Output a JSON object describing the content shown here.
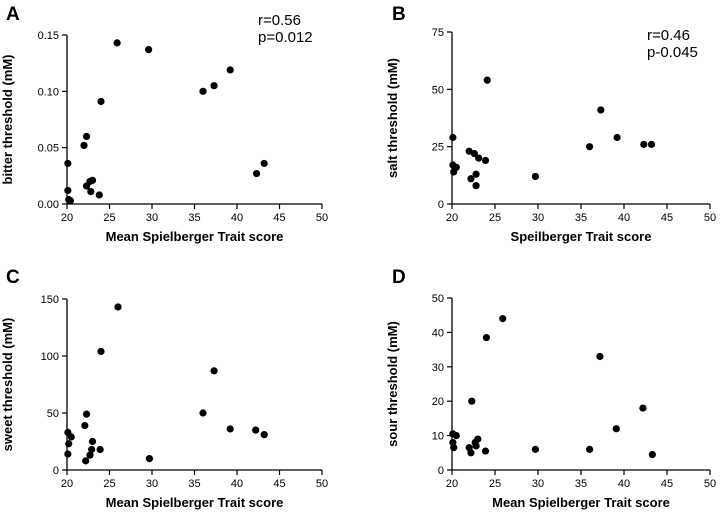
{
  "chart_data": [
    {
      "type": "scatter",
      "panel": "A",
      "xlabel": "Mean Spielberger Trait score",
      "ylabel": "bitter threshold (mM)",
      "xlim": [
        20,
        50
      ],
      "ylim": [
        0,
        0.15
      ],
      "xticks": [
        "20",
        "25",
        "30",
        "35",
        "40",
        "45",
        "50"
      ],
      "yticks": [
        "0.00",
        "0.05",
        "0.10",
        "0.15"
      ],
      "stats": [
        "r=0.56",
        "p=0.012"
      ],
      "points": [
        {
          "x": 20.1,
          "y": 0.036
        },
        {
          "x": 20.1,
          "y": 0.012
        },
        {
          "x": 20.2,
          "y": 0.004
        },
        {
          "x": 20.4,
          "y": 0.003
        },
        {
          "x": 22.0,
          "y": 0.052
        },
        {
          "x": 22.3,
          "y": 0.06
        },
        {
          "x": 22.3,
          "y": 0.016
        },
        {
          "x": 22.7,
          "y": 0.02
        },
        {
          "x": 23.0,
          "y": 0.021
        },
        {
          "x": 22.8,
          "y": 0.011
        },
        {
          "x": 23.8,
          "y": 0.008
        },
        {
          "x": 24.0,
          "y": 0.091
        },
        {
          "x": 25.9,
          "y": 0.143
        },
        {
          "x": 29.6,
          "y": 0.137
        },
        {
          "x": 36.0,
          "y": 0.1
        },
        {
          "x": 37.3,
          "y": 0.105
        },
        {
          "x": 39.2,
          "y": 0.119
        },
        {
          "x": 42.3,
          "y": 0.027
        },
        {
          "x": 43.2,
          "y": 0.036
        }
      ]
    },
    {
      "type": "scatter",
      "panel": "B",
      "xlabel": "Speilberger Trait score",
      "ylabel": "salt threshold (mM)",
      "xlim": [
        20,
        50
      ],
      "ylim": [
        0,
        75
      ],
      "xticks": [
        "20",
        "25",
        "30",
        "35",
        "40",
        "45",
        "50"
      ],
      "yticks": [
        "0",
        "25",
        "50",
        "75"
      ],
      "stats": [
        "r=0.46",
        "p-0.045"
      ],
      "points": [
        {
          "x": 20.1,
          "y": 29
        },
        {
          "x": 20.1,
          "y": 17
        },
        {
          "x": 20.2,
          "y": 14
        },
        {
          "x": 20.5,
          "y": 16
        },
        {
          "x": 22.0,
          "y": 23
        },
        {
          "x": 22.2,
          "y": 11
        },
        {
          "x": 22.6,
          "y": 22
        },
        {
          "x": 22.8,
          "y": 13
        },
        {
          "x": 23.1,
          "y": 20
        },
        {
          "x": 22.8,
          "y": 8
        },
        {
          "x": 23.9,
          "y": 19
        },
        {
          "x": 24.1,
          "y": 54
        },
        {
          "x": 29.7,
          "y": 12
        },
        {
          "x": 36.0,
          "y": 25
        },
        {
          "x": 37.3,
          "y": 41
        },
        {
          "x": 39.2,
          "y": 29
        },
        {
          "x": 42.3,
          "y": 26
        },
        {
          "x": 43.2,
          "y": 26
        }
      ]
    },
    {
      "type": "scatter",
      "panel": "C",
      "xlabel": "Mean Spielberger Trait score",
      "ylabel": "sweet threshold (mM)",
      "xlim": [
        20,
        50
      ],
      "ylim": [
        0,
        150
      ],
      "xticks": [
        "20",
        "25",
        "30",
        "35",
        "40",
        "45",
        "50"
      ],
      "yticks": [
        "0",
        "50",
        "100",
        "150"
      ],
      "stats": [],
      "points": [
        {
          "x": 20.1,
          "y": 33
        },
        {
          "x": 20.2,
          "y": 23
        },
        {
          "x": 20.1,
          "y": 14
        },
        {
          "x": 20.5,
          "y": 29
        },
        {
          "x": 22.1,
          "y": 39
        },
        {
          "x": 22.3,
          "y": 49
        },
        {
          "x": 22.2,
          "y": 8
        },
        {
          "x": 22.7,
          "y": 13
        },
        {
          "x": 23.0,
          "y": 25
        },
        {
          "x": 22.9,
          "y": 18
        },
        {
          "x": 23.9,
          "y": 18
        },
        {
          "x": 24.0,
          "y": 104
        },
        {
          "x": 26.0,
          "y": 143
        },
        {
          "x": 29.7,
          "y": 10
        },
        {
          "x": 36.0,
          "y": 50
        },
        {
          "x": 37.3,
          "y": 87
        },
        {
          "x": 39.2,
          "y": 36
        },
        {
          "x": 42.2,
          "y": 35
        },
        {
          "x": 43.2,
          "y": 31
        }
      ]
    },
    {
      "type": "scatter",
      "panel": "D",
      "xlabel": "Mean Spielberger Trait score",
      "ylabel": "sour threshold (mM)",
      "xlim": [
        20,
        50
      ],
      "ylim": [
        0,
        50
      ],
      "xticks": [
        "20",
        "25",
        "30",
        "35",
        "40",
        "45",
        "50"
      ],
      "yticks": [
        "0",
        "10",
        "20",
        "30",
        "40",
        "50"
      ],
      "stats": [],
      "points": [
        {
          "x": 20.1,
          "y": 10.5
        },
        {
          "x": 20.1,
          "y": 8
        },
        {
          "x": 20.2,
          "y": 6.5
        },
        {
          "x": 20.5,
          "y": 10
        },
        {
          "x": 22.0,
          "y": 6.5
        },
        {
          "x": 22.2,
          "y": 5
        },
        {
          "x": 22.3,
          "y": 20
        },
        {
          "x": 22.7,
          "y": 8
        },
        {
          "x": 23.0,
          "y": 9
        },
        {
          "x": 22.8,
          "y": 7
        },
        {
          "x": 23.9,
          "y": 5.5
        },
        {
          "x": 24.0,
          "y": 38.5
        },
        {
          "x": 25.9,
          "y": 44
        },
        {
          "x": 29.7,
          "y": 6
        },
        {
          "x": 36.0,
          "y": 6
        },
        {
          "x": 37.2,
          "y": 33
        },
        {
          "x": 39.1,
          "y": 12
        },
        {
          "x": 42.2,
          "y": 18
        },
        {
          "x": 43.3,
          "y": 4.5
        }
      ]
    }
  ]
}
